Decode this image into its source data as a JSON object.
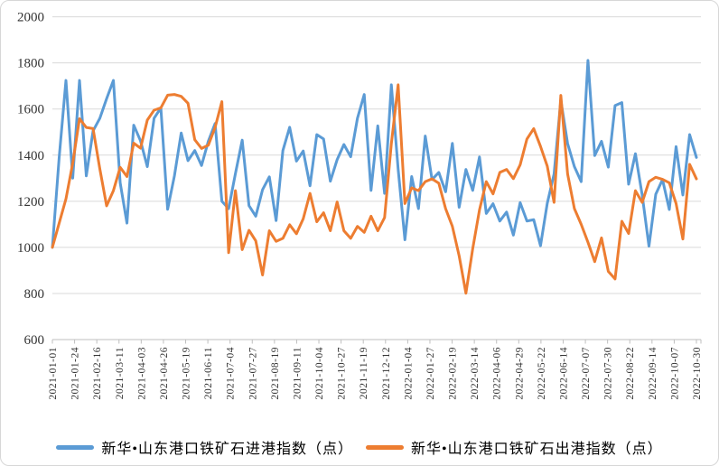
{
  "chart_data": {
    "type": "line",
    "title": "",
    "xlabel": "",
    "ylabel": "",
    "ylim": [
      600,
      2000
    ],
    "y_ticks": [
      600,
      800,
      1000,
      1200,
      1400,
      1600,
      1800,
      2000
    ],
    "grid": true,
    "legend_position": "bottom",
    "x_tick_labels": [
      "2021-01-01",
      "2021-01-24",
      "2021-02-16",
      "2021-03-11",
      "2021-04-03",
      "2021-04-26",
      "2021-05-19",
      "2021-06-11",
      "2021-07-04",
      "2021-07-27",
      "2021-08-19",
      "2021-09-11",
      "2021-10-04",
      "2021-10-27",
      "2021-11-19",
      "2021-12-12",
      "2022-01-04",
      "2022-01-27",
      "2022-02-19",
      "2022-03-14",
      "2022-04-06",
      "2022-04-29",
      "2022-05-22",
      "2022-06-14",
      "2022-07-07",
      "2022-07-30",
      "2022-08-22",
      "2022-09-14",
      "2022-10-07",
      "2022-10-30"
    ],
    "series": [
      {
        "name": "新华•山东港口铁矿石进港指数（点）",
        "color": "#5B9BD5",
        "values": [
          1000,
          1390,
          1724,
          1300,
          1724,
          1310,
          1505,
          1560,
          1645,
          1724,
          1280,
          1105,
          1530,
          1462,
          1350,
          1560,
          1605,
          1165,
          1310,
          1496,
          1376,
          1420,
          1355,
          1460,
          1537,
          1200,
          1168,
          1320,
          1465,
          1181,
          1135,
          1250,
          1306,
          1116,
          1420,
          1521,
          1374,
          1418,
          1267,
          1489,
          1470,
          1287,
          1380,
          1446,
          1393,
          1560,
          1663,
          1247,
          1527,
          1234,
          1705,
          1340,
          1033,
          1307,
          1168,
          1483,
          1294,
          1325,
          1241,
          1451,
          1174,
          1338,
          1247,
          1392,
          1147,
          1189,
          1114,
          1153,
          1053,
          1194,
          1114,
          1120,
          1007,
          1191,
          1318,
          1638,
          1450,
          1350,
          1285,
          1811,
          1398,
          1460,
          1348,
          1615,
          1628,
          1274,
          1406,
          1227,
          1005,
          1230,
          1294,
          1164,
          1437,
          1227,
          1489,
          1390
        ]
      },
      {
        "name": "新华•山东港口铁矿石出港指数（点）",
        "color": "#ED7D31",
        "values": [
          1000,
          1105,
          1210,
          1365,
          1558,
          1520,
          1515,
          1340,
          1180,
          1246,
          1347,
          1307,
          1452,
          1430,
          1552,
          1595,
          1605,
          1660,
          1663,
          1655,
          1625,
          1467,
          1429,
          1443,
          1520,
          1632,
          977,
          1246,
          990,
          1074,
          1028,
          880,
          1072,
          1026,
          1039,
          1098,
          1059,
          1124,
          1234,
          1111,
          1150,
          1072,
          1197,
          1072,
          1039,
          1091,
          1065,
          1135,
          1072,
          1129,
          1450,
          1705,
          1190,
          1258,
          1246,
          1285,
          1297,
          1278,
          1168,
          1091,
          963,
          801,
          994,
          1162,
          1285,
          1232,
          1325,
          1338,
          1298,
          1358,
          1470,
          1515,
          1438,
          1352,
          1195,
          1659,
          1318,
          1168,
          1100,
          1022,
          938,
          1041,
          896,
          863,
          1113,
          1060,
          1246,
          1195,
          1285,
          1304,
          1295,
          1280,
          1190,
          1036,
          1360,
          1297
        ]
      }
    ]
  }
}
